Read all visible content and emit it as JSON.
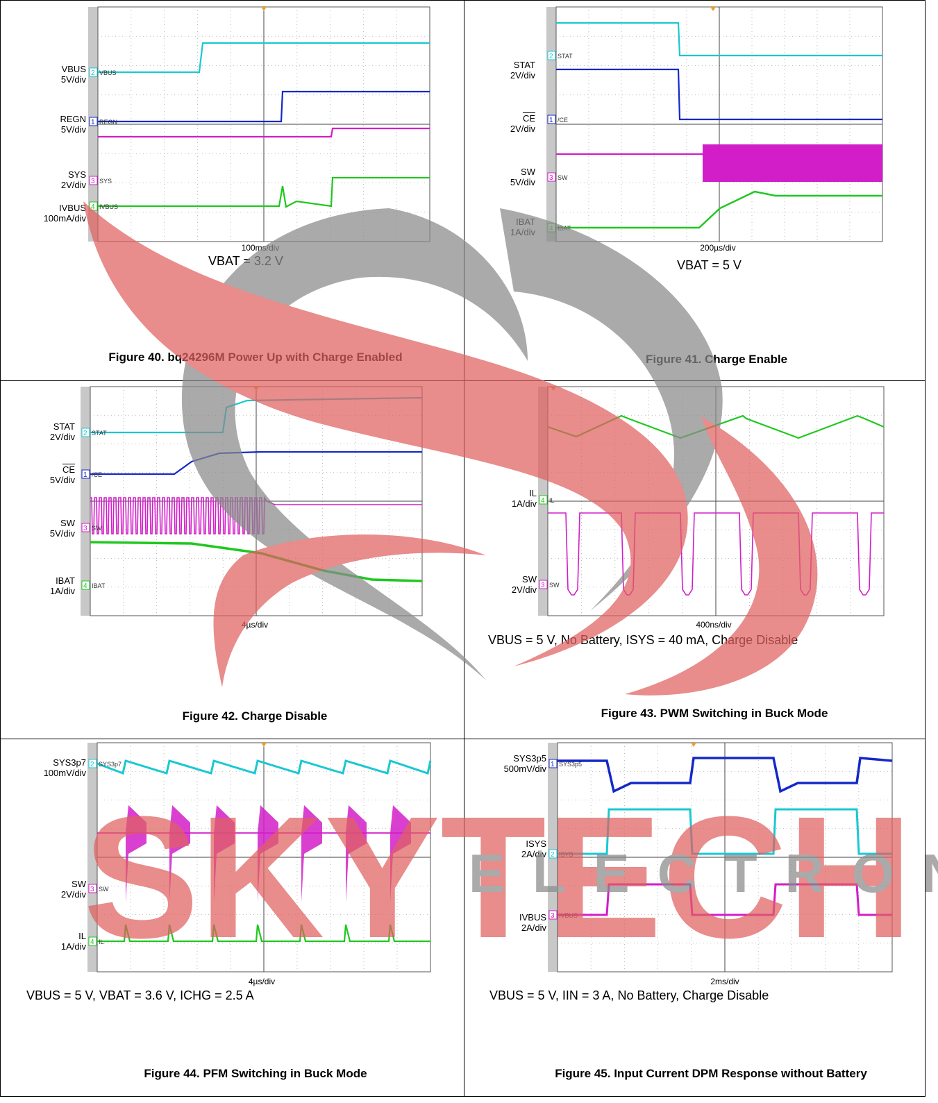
{
  "figures": [
    {
      "id": "fig40",
      "timebase": "100ms/div",
      "condition": "VBAT = 3.2 V",
      "caption": "Figure 40. bq24296M Power Up with Charge Enabled",
      "channels": [
        {
          "label": "VBUS",
          "scale": "5V/div",
          "tag": "VBUS",
          "num": "2",
          "color": "#19c8d2"
        },
        {
          "label": "REGN",
          "scale": "5V/div",
          "tag": "REGN",
          "num": "1",
          "color": "#1428c8"
        },
        {
          "label": "SYS",
          "scale": "2V/div",
          "tag": "SYS",
          "num": "3",
          "color": "#d21ec8"
        },
        {
          "label": "IVBUS",
          "scale": "100mA/div",
          "tag": "IVBUS",
          "num": "4",
          "color": "#1ec81e"
        }
      ]
    },
    {
      "id": "fig41",
      "timebase": "200µs/div",
      "condition": "VBAT = 5 V",
      "caption": "Figure 41. Charge Enable",
      "channels": [
        {
          "label": "STAT",
          "scale": "2V/div",
          "tag": "STAT",
          "num": "2",
          "color": "#19c8d2"
        },
        {
          "label": "CE",
          "scale": "2V/div",
          "tag": "/CE",
          "num": "1",
          "color": "#1428c8"
        },
        {
          "label": "SW",
          "scale": "5V/div",
          "tag": "SW",
          "num": "3",
          "color": "#d21ec8"
        },
        {
          "label": "IBAT",
          "scale": "1A/div",
          "tag": "IBAT",
          "num": "4",
          "color": "#1ec81e"
        }
      ]
    },
    {
      "id": "fig42",
      "timebase": "4µs/div",
      "condition": "",
      "caption": "Figure 42. Charge Disable",
      "channels": [
        {
          "label": "STAT",
          "scale": "2V/div",
          "tag": "STAT",
          "num": "2",
          "color": "#19c8d2"
        },
        {
          "label": "CE",
          "scale": "5V/div",
          "tag": "/CE",
          "num": "1",
          "color": "#1428c8"
        },
        {
          "label": "SW",
          "scale": "5V/div",
          "tag": "SW",
          "num": "3",
          "color": "#d21ec8"
        },
        {
          "label": "IBAT",
          "scale": "1A/div",
          "tag": "IBAT",
          "num": "4",
          "color": "#1ec81e"
        }
      ]
    },
    {
      "id": "fig43",
      "timebase": "400ns/div",
      "condition": "VBUS = 5 V, No Battery, ISYS = 40 mA, Charge Disable",
      "caption": "Figure 43. PWM Switching in Buck Mode",
      "channels": [
        {
          "label": "IL",
          "scale": "1A/div",
          "tag": "IL",
          "num": "4",
          "color": "#1ec81e"
        },
        {
          "label": "SW",
          "scale": "2V/div",
          "tag": "SW",
          "num": "3",
          "color": "#d21ec8"
        }
      ]
    },
    {
      "id": "fig44",
      "timebase": "4µs/div",
      "condition": "VBUS = 5 V, VBAT = 3.6 V, ICHG = 2.5 A",
      "caption": "Figure 44. PFM Switching in Buck Mode",
      "channels": [
        {
          "label": "SYS3p7",
          "scale": "100mV/div",
          "tag": "SYS3p7",
          "num": "2",
          "color": "#19c8d2"
        },
        {
          "label": "SW",
          "scale": "2V/div",
          "tag": "SW",
          "num": "3",
          "color": "#d21ec8"
        },
        {
          "label": "IL",
          "scale": "1A/div",
          "tag": "IL",
          "num": "4",
          "color": "#1ec81e"
        }
      ]
    },
    {
      "id": "fig45",
      "timebase": "2ms/div",
      "condition": "VBUS = 5 V, IIN = 3 A, No Battery, Charge Disable",
      "caption": "Figure 45. Input Current DPM Response without Battery",
      "channels": [
        {
          "label": "SYS3p5",
          "scale": "500mV/div",
          "tag": "SYS3p5",
          "num": "1",
          "color": "#1428c8"
        },
        {
          "label": "ISYS",
          "scale": "2A/div",
          "tag": "ISYS",
          "num": "2",
          "color": "#19c8d2"
        },
        {
          "label": "IVBUS",
          "scale": "2A/div",
          "tag": "IVBUS",
          "num": "3",
          "color": "#d21ec8"
        }
      ]
    }
  ],
  "watermark": {
    "text_main": "SKYTECH",
    "text_sub": "ELECTRONIC",
    "colors": {
      "red": "#e06060",
      "gray": "#8a8a8a"
    }
  }
}
